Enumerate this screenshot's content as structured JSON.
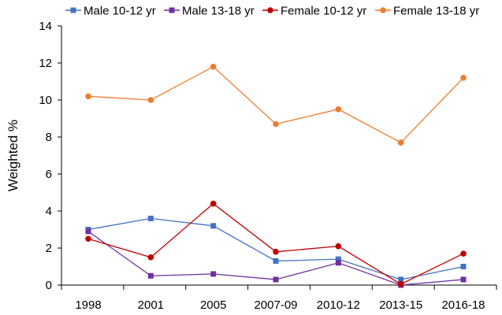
{
  "chart_data": {
    "type": "line",
    "title": "",
    "xlabel": "",
    "ylabel": "Weighted %",
    "categories": [
      "1998",
      "2001",
      "2005",
      "2007-09",
      "2010-12",
      "2013-15",
      "2016-18"
    ],
    "ylim": [
      0,
      14
    ],
    "yticks": [
      0,
      2,
      4,
      6,
      8,
      10,
      12,
      14
    ],
    "grid": false,
    "legend_position": "top",
    "series": [
      {
        "name": "Male 10-12 yr",
        "color": "#4472C4",
        "marker": "square",
        "values": [
          3.0,
          3.6,
          3.2,
          1.3,
          1.4,
          0.3,
          1.0
        ]
      },
      {
        "name": "Male 13-18 yr",
        "color": "#7030A0",
        "marker": "square",
        "values": [
          2.9,
          0.5,
          0.6,
          0.3,
          1.2,
          0.0,
          0.3
        ]
      },
      {
        "name": "Female 10-12 yr",
        "color": "#C00000",
        "marker": "circle",
        "values": [
          2.5,
          1.5,
          4.4,
          1.8,
          2.1,
          0.05,
          1.7
        ]
      },
      {
        "name": "Female 13-18 yr",
        "color": "#ED7D31",
        "marker": "circle",
        "values": [
          10.2,
          10.0,
          11.8,
          8.7,
          9.5,
          7.7,
          11.2
        ]
      }
    ]
  }
}
